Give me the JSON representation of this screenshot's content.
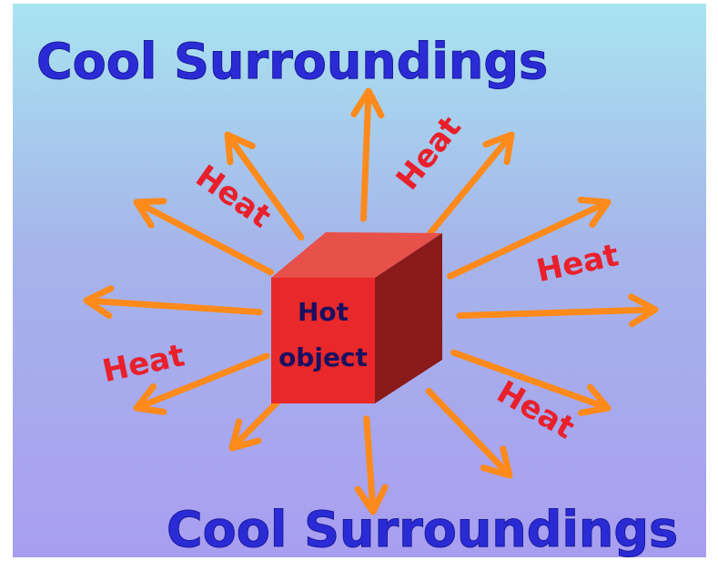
{
  "top_label": "Cool Surroundings",
  "bottom_label": "Cool Surroundings",
  "object": {
    "line1": "Hot",
    "line2": "object"
  },
  "heat_labels": [
    "Heat",
    "Heat",
    "Heat",
    "Heat",
    "Heat"
  ]
}
